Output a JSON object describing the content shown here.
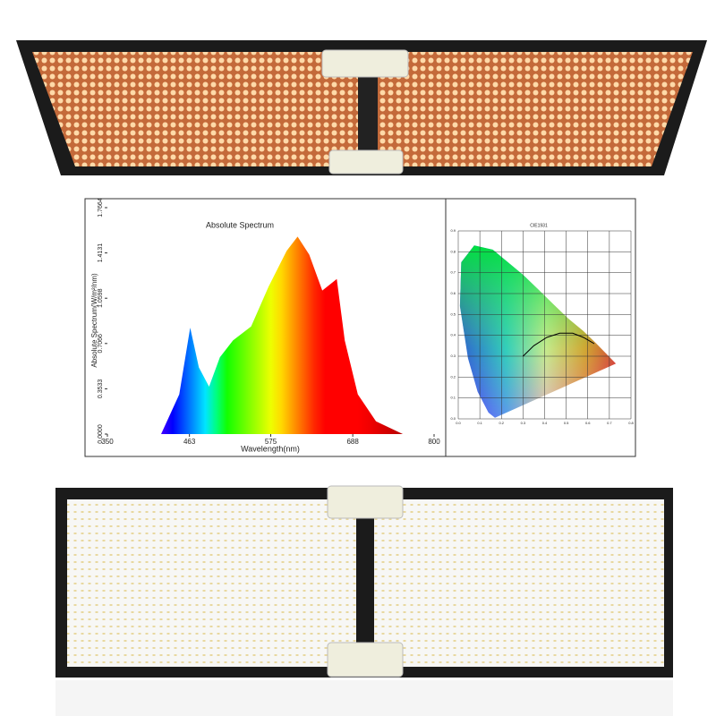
{
  "chart_data": [
    {
      "type": "area",
      "title": "Absolute Spectrum",
      "x_label": "Wavelength(nm)",
      "y_label": "Absolute Spectrum(W/m²/nm)",
      "x": [
        424,
        449,
        464,
        476,
        490,
        505,
        523,
        548,
        572,
        597,
        612,
        628,
        646,
        666,
        677,
        695,
        720,
        757
      ],
      "values": [
        0,
        0.31,
        0.83,
        0.52,
        0.37,
        0.6,
        0.73,
        0.84,
        1.15,
        1.43,
        1.54,
        1.4,
        1.12,
        1.21,
        0.73,
        0.31,
        0.1,
        0
      ],
      "xlim": [
        350,
        800
      ],
      "xticks": [
        350,
        463,
        575,
        688,
        800
      ],
      "ylim": [
        0,
        1.7664
      ],
      "yticks": [
        {
          "value": 0,
          "label": "0.0000"
        },
        {
          "value": 0.3533,
          "label": "0.3533"
        },
        {
          "value": 0.7066,
          "label": "0.7066"
        },
        {
          "value": 1.0598,
          "label": "1.0598"
        },
        {
          "value": 1.4131,
          "label": "1.4131"
        },
        1.7664
      ]
    },
    {
      "type": "cie",
      "title": "CIE1931",
      "xlim": [
        0,
        0.8
      ],
      "xticks": [
        {
          "value": 0,
          "label": "0.0"
        },
        0.1,
        0.2,
        0.3,
        0.4,
        0.5,
        0.6,
        0.7,
        {
          "value": 0.8,
          "label": "0.8"
        }
      ],
      "ylim": [
        0,
        0.9
      ],
      "yticks": [
        {
          "value": 0,
          "label": "0.0"
        },
        0.1,
        0.2,
        0.3,
        0.4,
        0.5,
        0.6,
        0.7,
        0.8,
        0.9
      ],
      "grid": true
    }
  ]
}
